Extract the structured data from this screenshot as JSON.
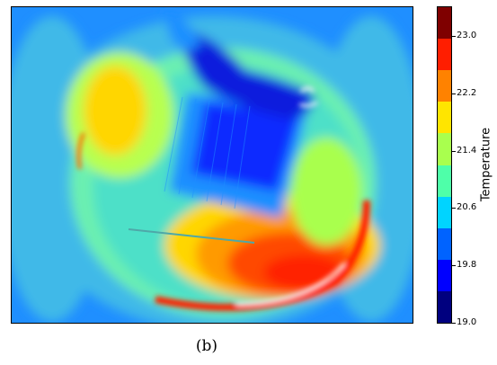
{
  "figure": {
    "caption": "(b)",
    "colorbar_label": "Temperature",
    "colorbar_ticks": [
      "23.0",
      "22.2",
      "21.4",
      "20.6",
      "19.8",
      "19.0"
    ],
    "colorbar_range": [
      19.0,
      23.4
    ],
    "colormap": [
      "#00007f",
      "#0000ff",
      "#0063ff",
      "#00d4ff",
      "#4effa9",
      "#a9ff4e",
      "#ffe500",
      "#ff8200",
      "#ff1e00",
      "#7f0000"
    ]
  }
}
